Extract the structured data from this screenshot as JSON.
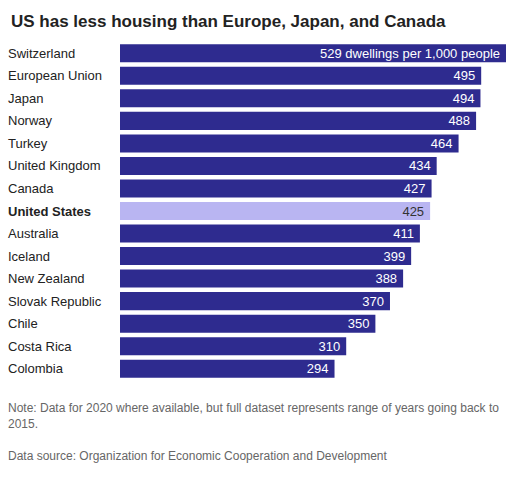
{
  "chart_data": {
    "type": "bar",
    "title": "US has less housing than Europe, Japan, and Canada",
    "orientation": "horizontal",
    "categories": [
      "Switzerland",
      "European Union",
      "Japan",
      "Norway",
      "Turkey",
      "United Kingdom",
      "Canada",
      "United States",
      "Australia",
      "Iceland",
      "New Zealand",
      "Slovak Republic",
      "Chile",
      "Costa Rica",
      "Colombia"
    ],
    "values": [
      529,
      495,
      494,
      488,
      464,
      434,
      427,
      425,
      411,
      399,
      388,
      370,
      350,
      310,
      294
    ],
    "value_labels": [
      "529 dwellings per 1,000 people",
      "495",
      "494",
      "488",
      "464",
      "434",
      "427",
      "425",
      "411",
      "399",
      "388",
      "370",
      "350",
      "310",
      "294"
    ],
    "colors": [
      "#2e2b8f",
      "#2e2b8f",
      "#2e2b8f",
      "#2e2b8f",
      "#2e2b8f",
      "#2e2b8f",
      "#2e2b8f",
      "#b9b5f2",
      "#2e2b8f",
      "#2e2b8f",
      "#2e2b8f",
      "#2e2b8f",
      "#2e2b8f",
      "#2e2b8f",
      "#2e2b8f"
    ],
    "data_labels": true,
    "tick_labels": false,
    "xlim": [
      0,
      529
    ],
    "annotations": [
      "Note: Data for 2020 where available, but full dataset represents range of years going back to 2015.",
      "Data source: Organization for Economic Cooperation and Development"
    ]
  }
}
